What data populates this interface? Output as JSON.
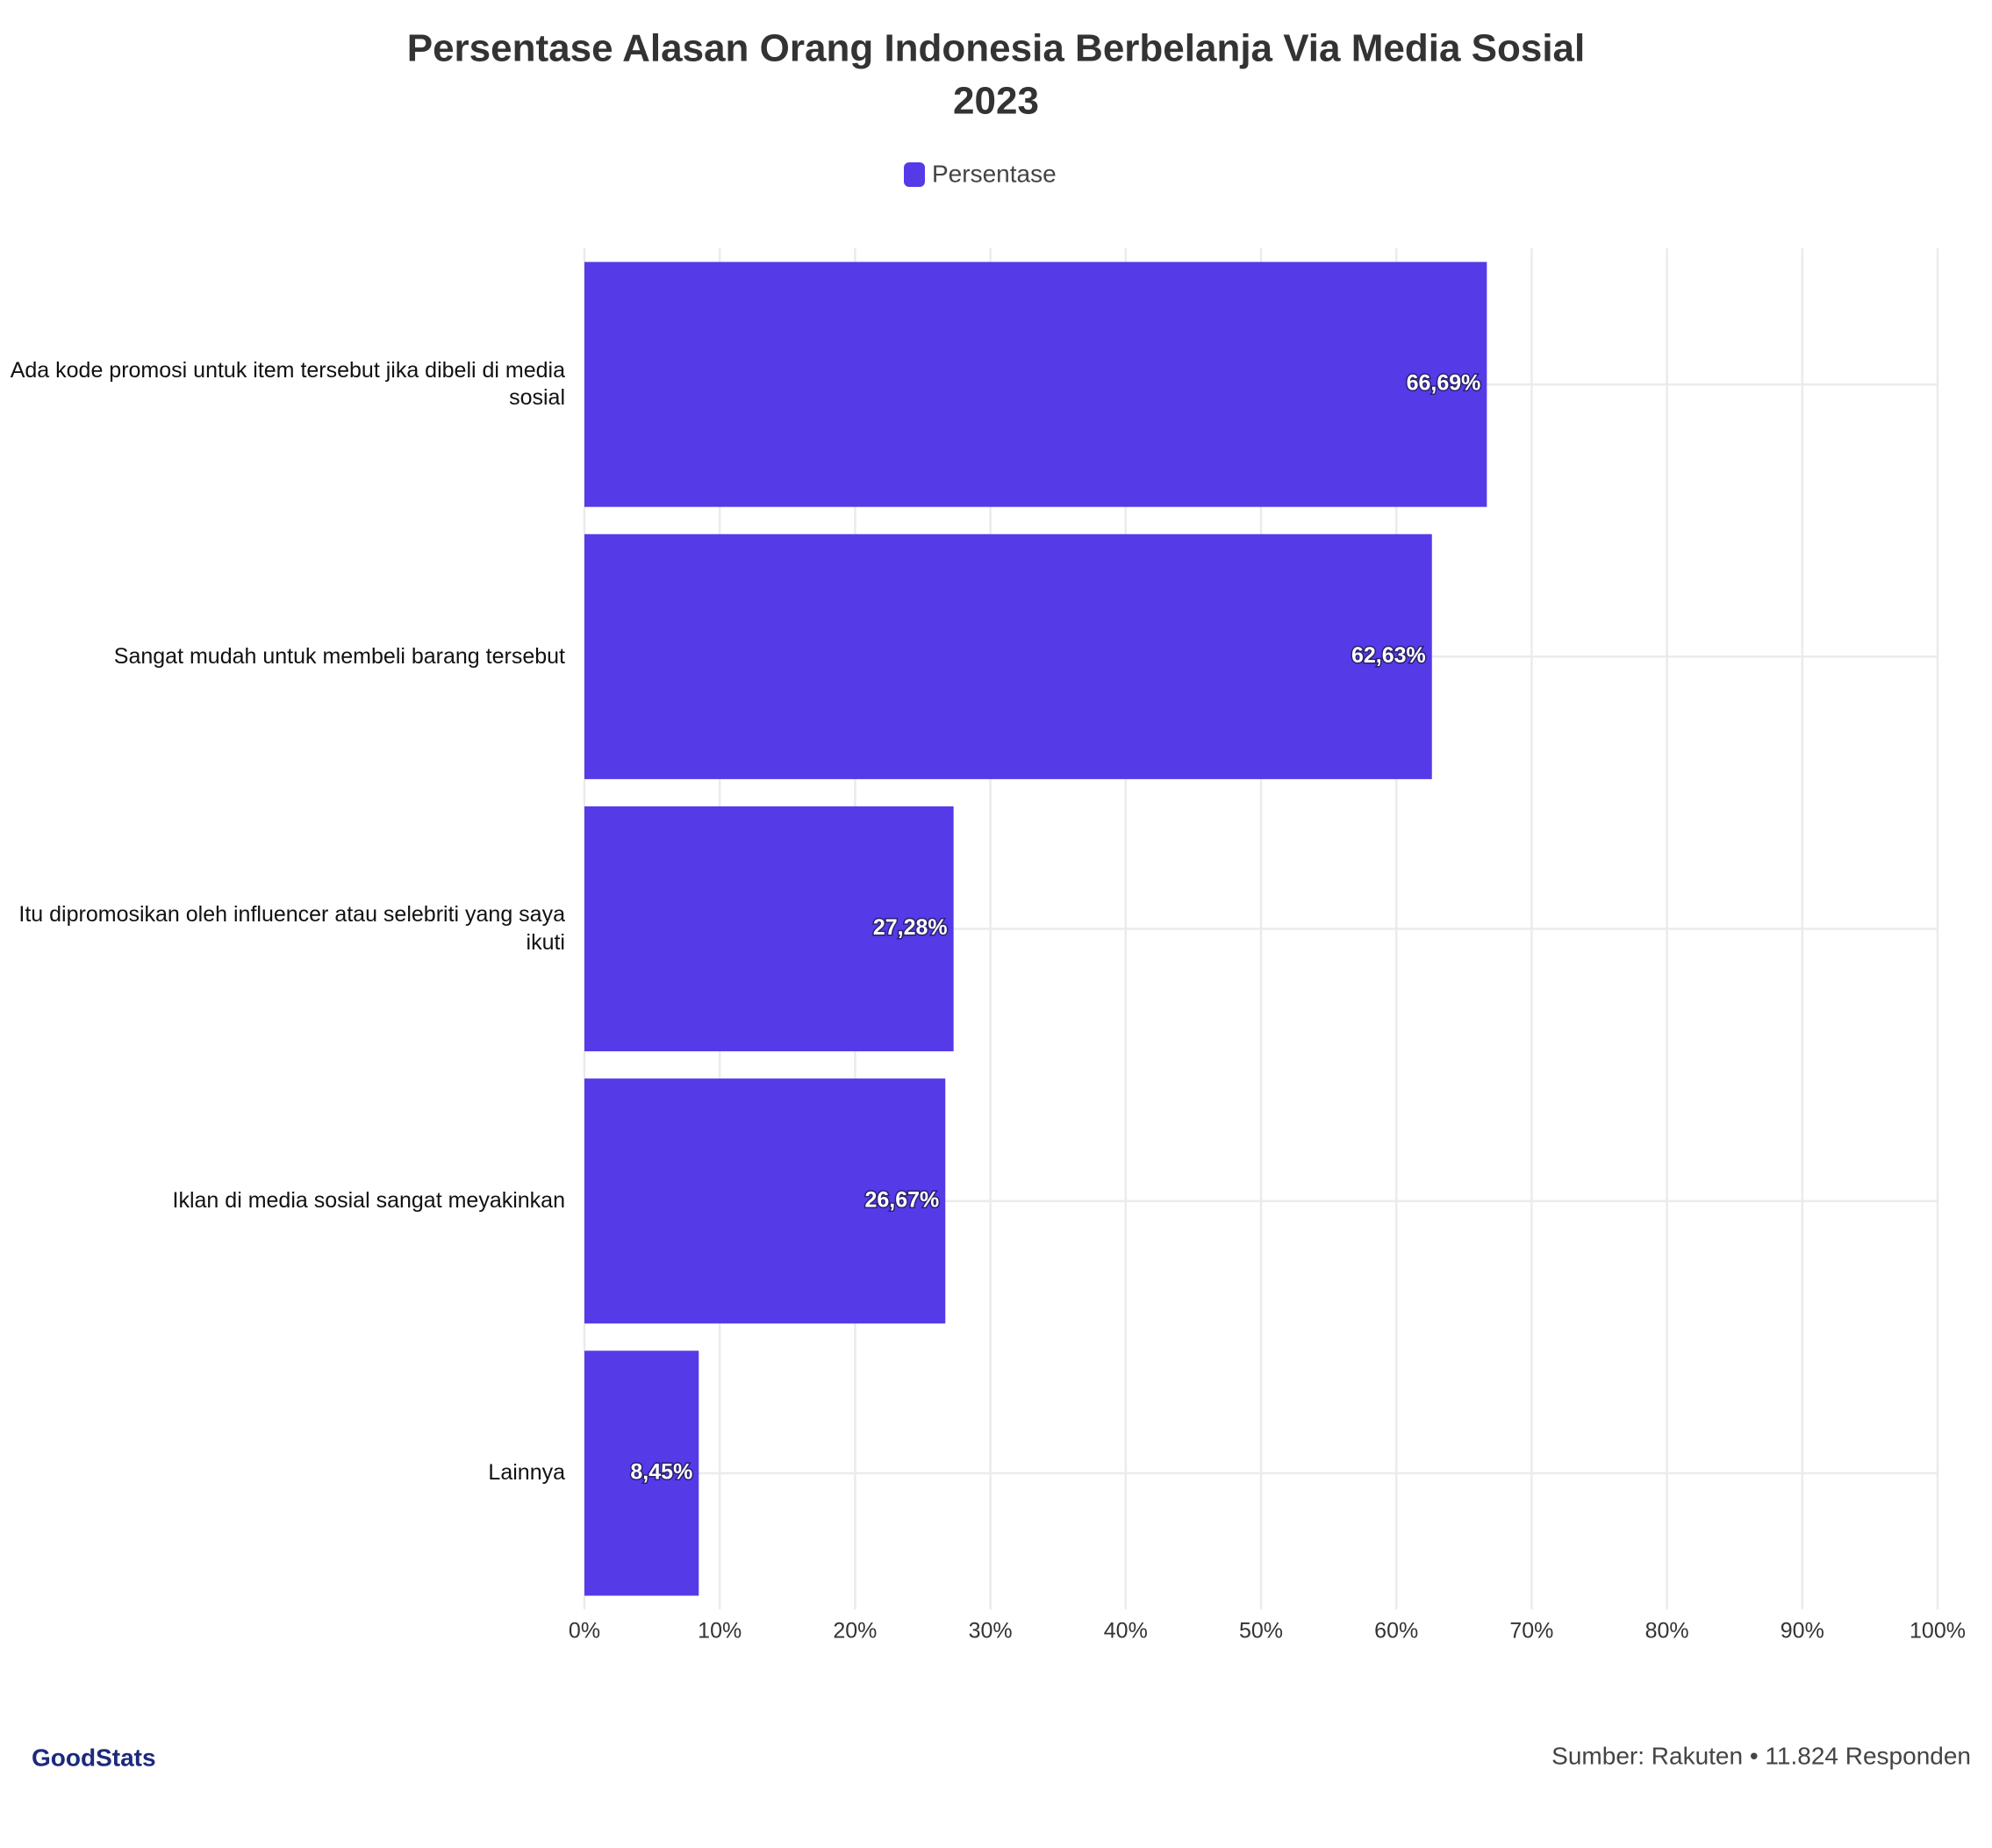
{
  "chart_data": {
    "type": "bar",
    "orientation": "horizontal",
    "title": "Persentase Alasan Orang Indonesia Berbelanja Via Media Sosial",
    "subtitle": "2023",
    "categories": [
      "Ada kode promosi untuk item tersebut jika dibeli di media sosial",
      "Sangat mudah untuk membeli barang tersebut",
      "Itu dipromosikan oleh influencer atau selebriti yang saya ikuti",
      "Iklan di media sosial sangat meyakinkan",
      "Lainnya"
    ],
    "series": [
      {
        "name": "Persentase",
        "color": "#553ae8",
        "values": [
          66.69,
          62.63,
          27.28,
          26.67,
          8.45
        ],
        "value_labels": [
          "66,69%",
          "62,63%",
          "27,28%",
          "26,67%",
          "8,45%"
        ]
      }
    ],
    "xlim": [
      0,
      100
    ],
    "xticks": [
      {
        "value": 0,
        "label": "0%"
      },
      {
        "value": 10,
        "label": "10%"
      },
      {
        "value": 20,
        "label": "20%"
      },
      {
        "value": 30,
        "label": "30%"
      },
      {
        "value": 40,
        "label": "40%"
      },
      {
        "value": 50,
        "label": "50%"
      },
      {
        "value": 60,
        "label": "60%"
      },
      {
        "value": 70,
        "label": "70%"
      },
      {
        "value": 80,
        "label": "80%"
      },
      {
        "value": 90,
        "label": "90%"
      },
      {
        "value": 100,
        "label": "100%"
      }
    ],
    "grid": true,
    "legend": "top",
    "source": "Sumber: Rakuten • 11.824 Responden",
    "logo": "GoodStats"
  }
}
